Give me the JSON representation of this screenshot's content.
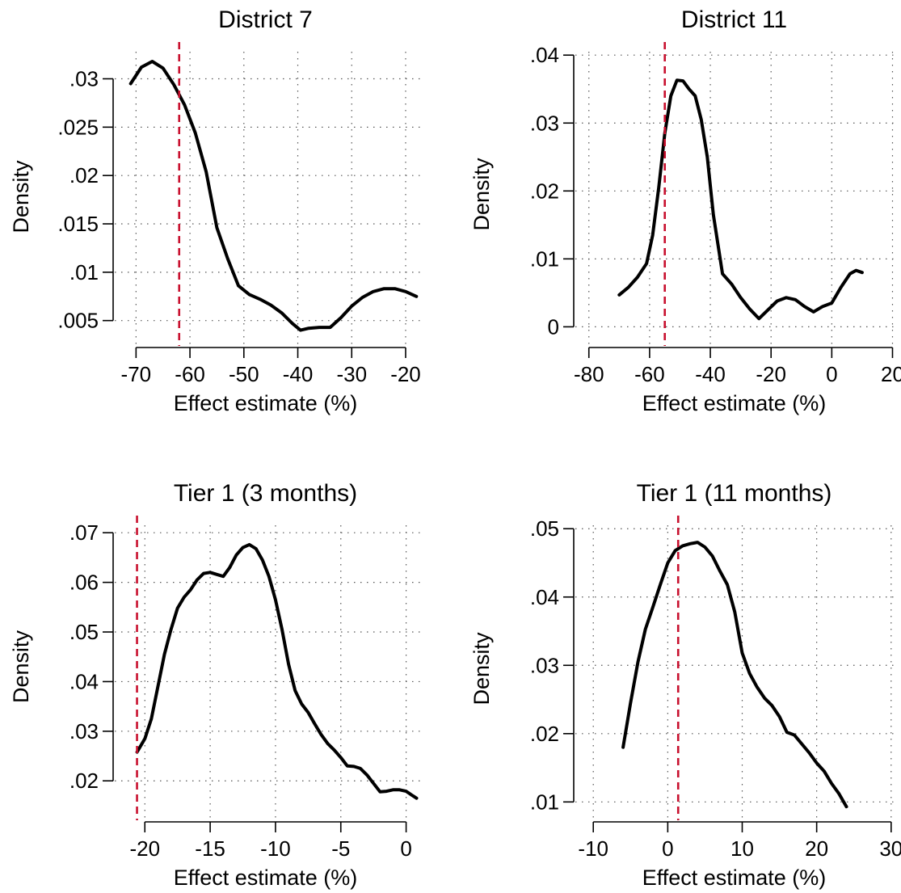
{
  "colors": {
    "curve": "#000000",
    "reference_line": "#c8102e",
    "grid": "#555555"
  },
  "chart_data": [
    {
      "type": "line",
      "title": "District 7",
      "xlabel": "Effect estimate (%)",
      "ylabel": "Density",
      "xlim": [
        -72,
        -17
      ],
      "ylim": [
        0.0028,
        0.0328
      ],
      "xticks": [
        -70,
        -60,
        -50,
        -40,
        -30,
        -20
      ],
      "xtick_labels": [
        "-70",
        "-60",
        "-50",
        "-40",
        "-30",
        "-20"
      ],
      "yticks": [
        0.005,
        0.01,
        0.015,
        0.02,
        0.025,
        0.03
      ],
      "ytick_labels": [
        ".005",
        ".01",
        ".015",
        ".02",
        ".025",
        ".03"
      ],
      "grid": true,
      "reference_x": -62,
      "x": [
        -71,
        -69,
        -67,
        -65,
        -63,
        -61,
        -59,
        -57,
        -55,
        -53,
        -51,
        -49,
        -47,
        -45,
        -43,
        -41,
        -39.5,
        -38,
        -36,
        -34,
        -32,
        -30,
        -28,
        -26,
        -24,
        -22,
        -20,
        -18
      ],
      "y": [
        0.0295,
        0.0312,
        0.0318,
        0.0311,
        0.0294,
        0.0273,
        0.0244,
        0.0204,
        0.0146,
        0.0114,
        0.0086,
        0.0077,
        0.0072,
        0.0066,
        0.0058,
        0.0047,
        0.004,
        0.0042,
        0.0043,
        0.0043,
        0.0053,
        0.0065,
        0.0074,
        0.008,
        0.0083,
        0.0083,
        0.008,
        0.0075
      ]
    },
    {
      "type": "line",
      "title": "District 11",
      "xlabel": "Effect estimate (%)",
      "ylabel": "Density",
      "xlim": [
        -81,
        22
      ],
      "ylim": [
        -0.0015,
        0.0405
      ],
      "xticks": [
        -80,
        -60,
        -40,
        -20,
        0,
        20
      ],
      "xtick_labels": [
        "-80",
        "-60",
        "-40",
        "-20",
        "0",
        "20"
      ],
      "yticks": [
        0,
        0.01,
        0.02,
        0.03,
        0.04
      ],
      "ytick_labels": [
        "0",
        ".01",
        ".02",
        ".03",
        ".04"
      ],
      "grid": true,
      "reference_x": -55,
      "x": [
        -70,
        -67,
        -64,
        -61,
        -59,
        -57,
        -55,
        -53,
        -51,
        -49,
        -47,
        -45,
        -43,
        -41,
        -39,
        -36,
        -33,
        -30,
        -27,
        -24,
        -21,
        -18,
        -15,
        -12,
        -9,
        -6,
        -3,
        0,
        3,
        6,
        8,
        10
      ],
      "y": [
        0.0047,
        0.0058,
        0.0073,
        0.0093,
        0.0135,
        0.0205,
        0.0285,
        0.034,
        0.0363,
        0.0362,
        0.035,
        0.034,
        0.0305,
        0.025,
        0.0165,
        0.0078,
        0.0063,
        0.0043,
        0.0026,
        0.0012,
        0.0025,
        0.0038,
        0.0043,
        0.004,
        0.003,
        0.0022,
        0.003,
        0.0035,
        0.0058,
        0.0078,
        0.0083,
        0.008
      ]
    },
    {
      "type": "line",
      "title": "Tier 1 (3 months)",
      "xlabel": "Effect estimate (%)",
      "ylabel": "Density",
      "xlim": [
        -21.5,
        1.2
      ],
      "ylim": [
        0.0145,
        0.0715
      ],
      "xticks": [
        -20,
        -15,
        -10,
        -5,
        0
      ],
      "xtick_labels": [
        "-20",
        "-15",
        "-10",
        "-5",
        "0"
      ],
      "yticks": [
        0.02,
        0.03,
        0.04,
        0.05,
        0.06,
        0.07
      ],
      "ytick_labels": [
        ".02",
        ".03",
        ".04",
        ".05",
        ".06",
        ".07"
      ],
      "grid": true,
      "reference_x": -20.6,
      "x": [
        -20.6,
        -20,
        -19.5,
        -19,
        -18.5,
        -18,
        -17.5,
        -17,
        -16.5,
        -16,
        -15.5,
        -15,
        -14.5,
        -14,
        -13.5,
        -13,
        -12.5,
        -12,
        -11.5,
        -11,
        -10.5,
        -10,
        -9.5,
        -9,
        -8.5,
        -8,
        -7.5,
        -7,
        -6.5,
        -6,
        -5.5,
        -5,
        -4.5,
        -4,
        -3.5,
        -3,
        -2.5,
        -2,
        -1.5,
        -1,
        -0.5,
        0,
        0.5,
        0.8
      ],
      "y": [
        0.0258,
        0.0285,
        0.0325,
        0.039,
        0.0455,
        0.0505,
        0.0548,
        0.057,
        0.0585,
        0.0605,
        0.0618,
        0.062,
        0.0616,
        0.0612,
        0.063,
        0.0655,
        0.067,
        0.0676,
        0.0668,
        0.0645,
        0.0612,
        0.0565,
        0.0505,
        0.0435,
        0.0382,
        0.0355,
        0.0338,
        0.0315,
        0.0293,
        0.0275,
        0.0262,
        0.0247,
        0.023,
        0.0229,
        0.0225,
        0.0212,
        0.0195,
        0.0178,
        0.0179,
        0.0182,
        0.0182,
        0.0179,
        0.017,
        0.0165
      ]
    },
    {
      "type": "line",
      "title": "Tier 1 (11 months)",
      "xlabel": "Effect estimate (%)",
      "ylabel": "Density",
      "xlim": [
        -11,
        31
      ],
      "ylim": [
        0.0085,
        0.0505
      ],
      "xticks": [
        -10,
        0,
        10,
        20,
        30
      ],
      "xtick_labels": [
        "-10",
        "0",
        "10",
        "20",
        "30"
      ],
      "yticks": [
        0.01,
        0.02,
        0.03,
        0.04,
        0.05
      ],
      "ytick_labels": [
        ".01",
        ".02",
        ".03",
        ".04",
        ".05"
      ],
      "grid": true,
      "reference_x": 1.4,
      "x": [
        -6,
        -5,
        -4,
        -3,
        -2,
        -1,
        0,
        1,
        2,
        3,
        4,
        5,
        6,
        7,
        8,
        9,
        10,
        11,
        12,
        13,
        14,
        15,
        16,
        17,
        18,
        19,
        20,
        21,
        22,
        23,
        24
      ],
      "y": [
        0.018,
        0.0245,
        0.0305,
        0.0353,
        0.0385,
        0.0418,
        0.045,
        0.0468,
        0.0475,
        0.0478,
        0.048,
        0.0473,
        0.046,
        0.0438,
        0.0418,
        0.0378,
        0.0318,
        0.0288,
        0.0268,
        0.0252,
        0.0241,
        0.0225,
        0.0202,
        0.0198,
        0.0185,
        0.0172,
        0.0157,
        0.0145,
        0.0127,
        0.0112,
        0.0093
      ]
    }
  ]
}
